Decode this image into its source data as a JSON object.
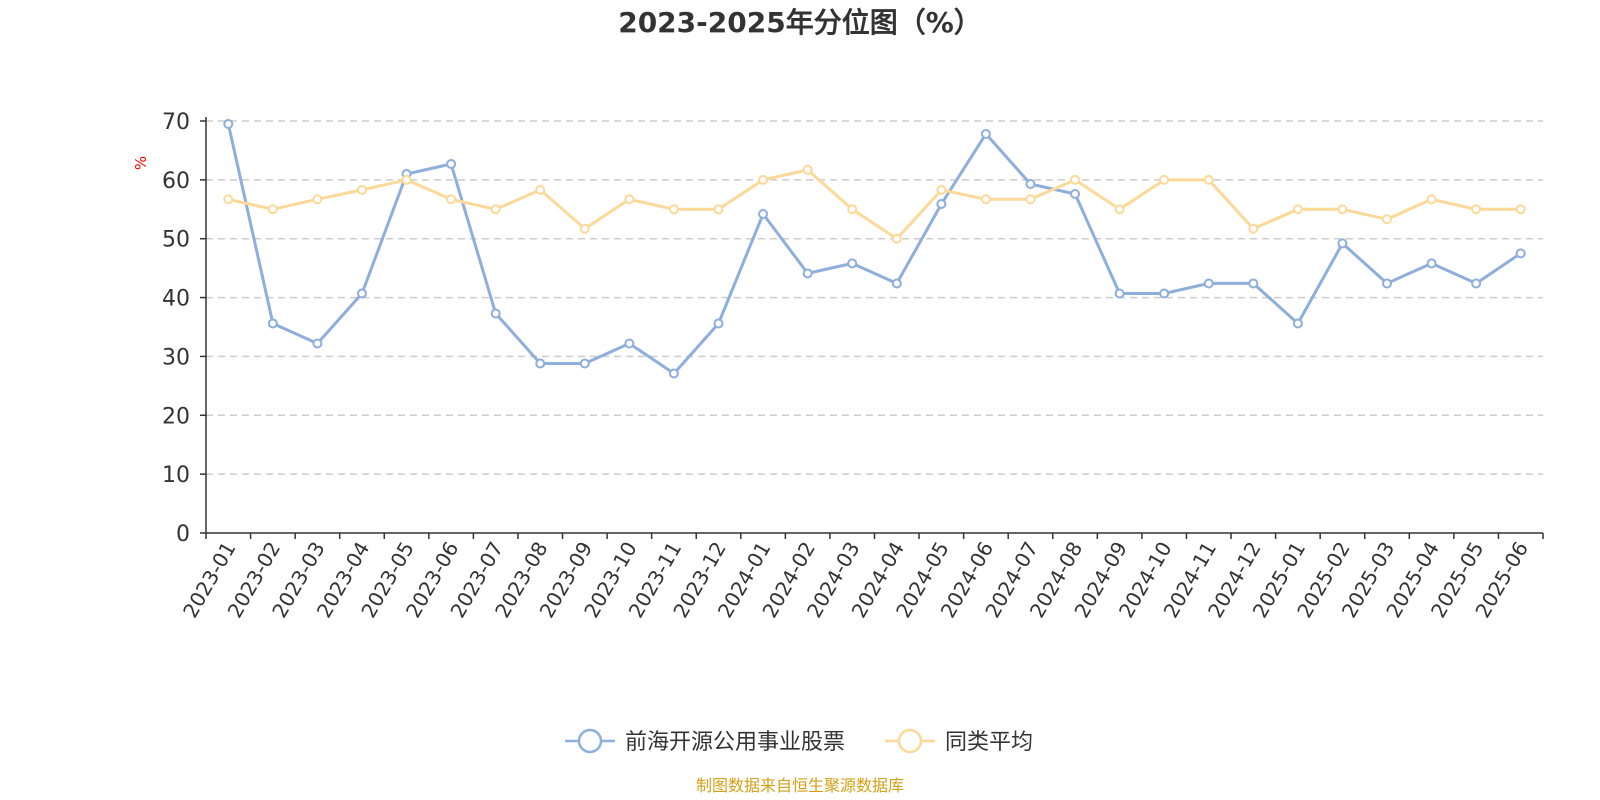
{
  "chart_data": {
    "type": "line",
    "title": "2023-2025年分位图（%）",
    "ylabel": "%",
    "xlabel": "",
    "ylim": [
      0,
      70
    ],
    "yticks": [
      0,
      10,
      20,
      30,
      40,
      50,
      60,
      70
    ],
    "grid": true,
    "legend_position": "bottom",
    "categories": [
      "2023-01",
      "2023-02",
      "2023-03",
      "2023-04",
      "2023-05",
      "2023-06",
      "2023-07",
      "2023-08",
      "2023-09",
      "2023-10",
      "2023-11",
      "2023-12",
      "2024-01",
      "2024-02",
      "2024-03",
      "2024-04",
      "2024-05",
      "2024-06",
      "2024-07",
      "2024-08",
      "2024-09",
      "2024-10",
      "2024-11",
      "2024-12",
      "2025-01",
      "2025-02",
      "2025-03",
      "2025-04",
      "2025-05",
      "2025-06"
    ],
    "series": [
      {
        "name": "前海开源公用事业股票",
        "color": "#8eaedc",
        "values": [
          69.5,
          35.6,
          32.2,
          40.7,
          61.0,
          62.7,
          37.3,
          28.8,
          28.8,
          32.2,
          27.1,
          35.6,
          54.2,
          44.1,
          45.8,
          42.4,
          55.9,
          67.8,
          59.3,
          57.6,
          40.7,
          40.7,
          42.4,
          42.4,
          35.6,
          49.2,
          42.4,
          45.8,
          42.4,
          47.5
        ]
      },
      {
        "name": "同类平均",
        "color": "#fcd998",
        "values": [
          56.7,
          55.0,
          56.7,
          58.3,
          60.0,
          56.7,
          55.0,
          58.3,
          51.7,
          56.7,
          55.0,
          55.0,
          60.0,
          61.7,
          55.0,
          50.0,
          58.3,
          56.7,
          56.7,
          60.0,
          55.0,
          60.0,
          60.0,
          51.7,
          55.0,
          55.0,
          53.3,
          56.7,
          55.0,
          55.0
        ]
      }
    ],
    "source": "制图数据来自恒生聚源数据库",
    "unit_color": "#ff0000",
    "source_color": "#d4a017"
  }
}
